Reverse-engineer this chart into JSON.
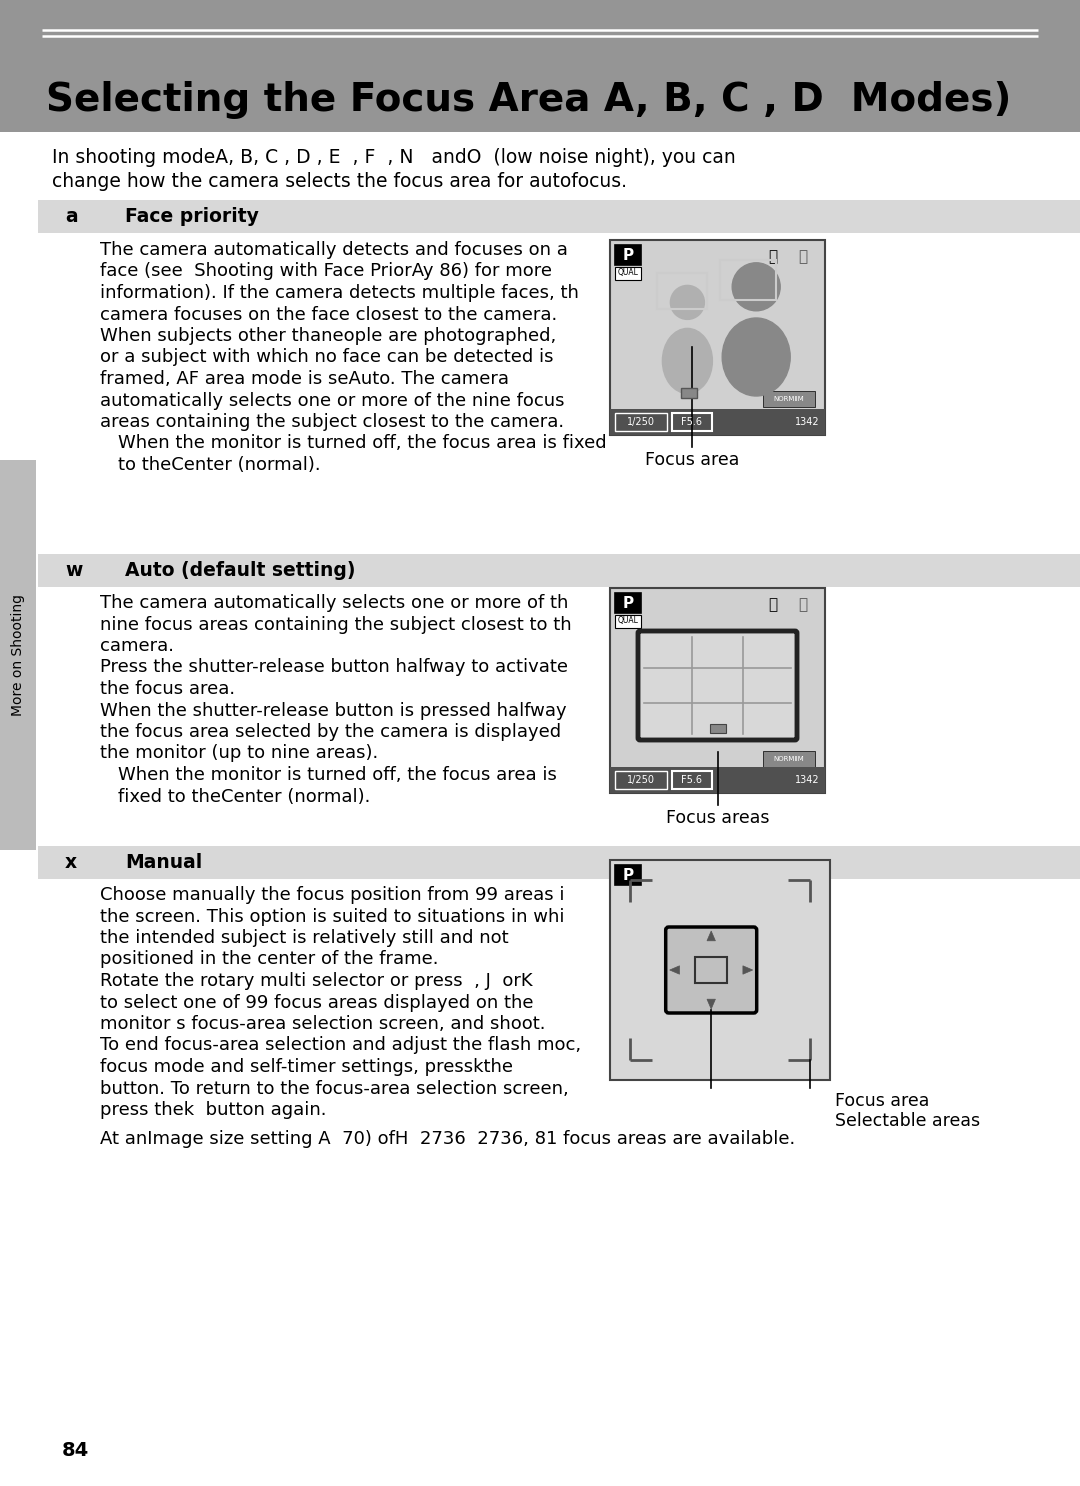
{
  "page_bg": "#ffffff",
  "header_bg": "#959595",
  "header_line_color": "#ffffff",
  "header_text": "Selecting the Focus Area A, B, C , D  Modes)",
  "section_bg": "#d8d8d8",
  "body_text_color": "#000000",
  "sidebar_bg": "#bbbbbb",
  "sidebar_text": "More on Shooting",
  "page_number": "84",
  "intro_line1": "In shooting modeA, B, C , D , E  , F  , N   andO  (low noise night), you can",
  "intro_line2": "change how the camera selects the focus area for autofocus.",
  "sections": [
    {
      "key": "a",
      "title": "Face priority",
      "body_lines": [
        "The camera automatically detects and focuses on a",
        "face (see  Shooting with Face PriorAy 86) for more",
        "information). If the camera detects multiple faces, th",
        "camera focuses on the face closest to the camera.",
        "When subjects other thaneople are photographed,",
        "or a subject with which no face can be detected is",
        "framed, AF area mode is seAuto. The camera",
        "automatically selects one or more of the nine focus",
        "areas containing the subject closest to the camera.",
        "    When the monitor is turned off, the focus area is fixed",
        "    to theCenter (normal)."
      ],
      "image_label": "Focus area",
      "image_type": "face_priority"
    },
    {
      "key": "w",
      "title": "Auto (default setting)",
      "body_lines": [
        "The camera automatically selects one or more of th",
        "nine focus areas containing the subject closest to th",
        "camera.",
        "Press the shutter-release button halfway to activate",
        "the focus area.",
        "When the shutter-release button is pressed halfway",
        "the focus area selected by the camera is displayed ",
        "the monitor (up to nine areas).",
        "    When the monitor is turned off, the focus area is",
        "    fixed to theCenter (normal)."
      ],
      "image_label": "Focus areas",
      "image_type": "auto"
    },
    {
      "key": "x",
      "title": "Manual",
      "body_lines": [
        "Choose manually the focus position from 99 areas i",
        "the screen. This option is suited to situations in whi",
        "the intended subject is relatively still and not",
        "positioned in the center of the frame.",
        "Rotate the rotary multi selector or press  , J  orK",
        "to select one of 99 focus areas displayed on the",
        "monitor s focus-area selection screen, and shoot.",
        "To end focus-area selection and adjust the flash moc,",
        "focus mode and self-timer settings, presskthe",
        "button. To return to the focus-area selection screen,",
        "press thek  button again."
      ],
      "image_label1": "Focus area",
      "image_label2": "Selectable areas",
      "image_type": "manual"
    }
  ],
  "footnote": "    At anImage size setting A  70) ofH  2736  2736, 81 focus areas are available."
}
